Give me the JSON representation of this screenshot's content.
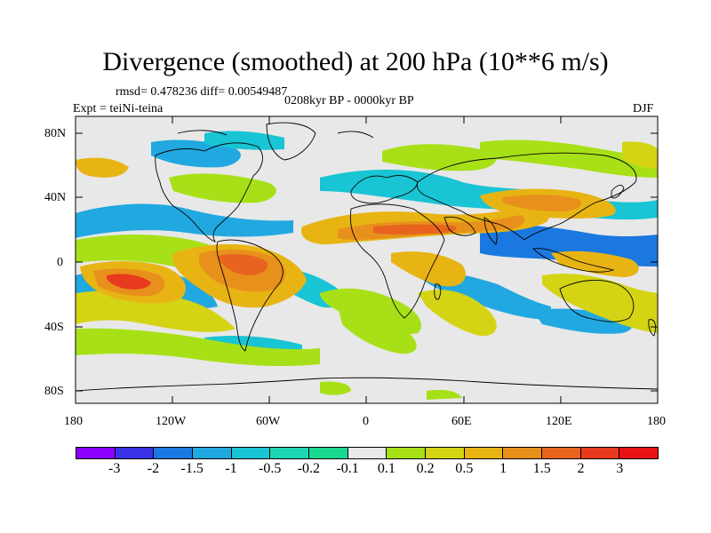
{
  "title": "Divergence (smoothed) at 200 hPa (10**6 m/s)",
  "stats": "rmsd= 0.478236 diff= 0.00549487",
  "period": "0208kyr BP - 0000kyr BP",
  "experiment": "Expt = teiNi-teina",
  "season": "DJF",
  "lat_labels": [
    "80N",
    "40N",
    "0",
    "40S",
    "80S"
  ],
  "lon_labels": [
    "180",
    "120W",
    "60W",
    "0",
    "60E",
    "120E",
    "180"
  ],
  "colorbar": {
    "labels": [
      "-3",
      "-2",
      "-1.5",
      "-1",
      "-0.5",
      "-0.2",
      "-0.1",
      "0.1",
      "0.2",
      "0.5",
      "1",
      "1.5",
      "2",
      "3"
    ],
    "colors": [
      "#8b00ff",
      "#3a32e6",
      "#1a78e0",
      "#21a8e0",
      "#19c4d4",
      "#1fd6b4",
      "#19d890",
      "#e8e8e8",
      "#a8e018",
      "#d4d414",
      "#e8b414",
      "#e8901c",
      "#e8641e",
      "#e83a1e",
      "#e81414"
    ]
  }
}
